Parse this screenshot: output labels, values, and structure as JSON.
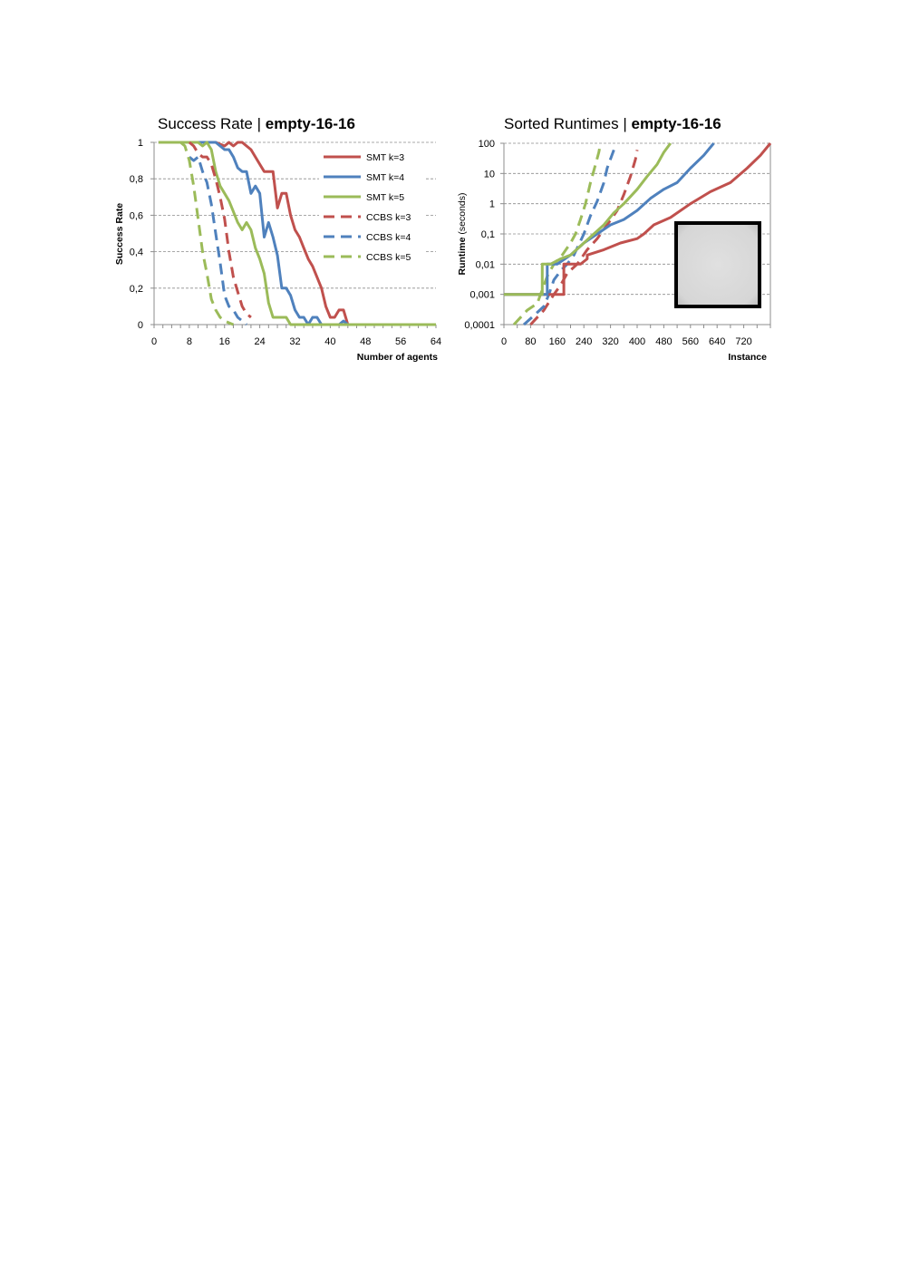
{
  "chart_data": [
    {
      "type": "line",
      "title": "Success Rate | ",
      "title_bold": "empty-16-16",
      "xlabel": "Number of agents",
      "ylabel": "Success Rate",
      "xlim": [
        0,
        64
      ],
      "ylim": [
        0,
        1
      ],
      "x_ticks": [
        "0",
        "8",
        "16",
        "24",
        "32",
        "40",
        "48",
        "56",
        "64"
      ],
      "y_ticks": [
        "0",
        "0,2",
        "0,4",
        "0,6",
        "0,8",
        "1"
      ],
      "grid": "horizontal dashed",
      "legend_position": "top-right",
      "series": [
        {
          "name": "SMT k=3",
          "color": "#c0504d",
          "style": "solid",
          "x": [
            1,
            14,
            16,
            17,
            18,
            19,
            20,
            22,
            24,
            25,
            26,
            27,
            28,
            29,
            30,
            31,
            32,
            33,
            34,
            35,
            36,
            37,
            38,
            39,
            40,
            41,
            42,
            43,
            44,
            46,
            64
          ],
          "y": [
            1,
            1,
            0.98,
            1,
            0.98,
            1,
            1,
            0.96,
            0.88,
            0.84,
            0.84,
            0.84,
            0.64,
            0.72,
            0.72,
            0.6,
            0.52,
            0.48,
            0.42,
            0.36,
            0.32,
            0.26,
            0.2,
            0.1,
            0.04,
            0.04,
            0.08,
            0.08,
            0,
            0,
            0
          ]
        },
        {
          "name": "SMT k=4",
          "color": "#4f81bd",
          "style": "solid",
          "x": [
            1,
            12,
            14,
            16,
            17,
            18,
            19,
            20,
            21,
            22,
            23,
            24,
            25,
            26,
            27,
            28,
            29,
            30,
            31,
            32,
            33,
            34,
            35,
            36,
            37,
            38,
            40,
            42,
            43,
            44,
            64
          ],
          "y": [
            1,
            1,
            1,
            0.96,
            0.96,
            0.92,
            0.86,
            0.84,
            0.84,
            0.72,
            0.76,
            0.72,
            0.48,
            0.56,
            0.48,
            0.38,
            0.2,
            0.2,
            0.16,
            0.08,
            0.04,
            0.04,
            0.0,
            0.04,
            0.04,
            0,
            0,
            0,
            0.02,
            0,
            0
          ]
        },
        {
          "name": "SMT k=5",
          "color": "#9bbb59",
          "style": "solid",
          "x": [
            1,
            10,
            11,
            12,
            13,
            14,
            15,
            16,
            17,
            18,
            19,
            20,
            21,
            22,
            23,
            24,
            25,
            26,
            27,
            28,
            29,
            30,
            31,
            32,
            64
          ],
          "y": [
            1,
            1,
            0.98,
            1,
            0.96,
            0.84,
            0.76,
            0.72,
            0.68,
            0.62,
            0.56,
            0.52,
            0.56,
            0.52,
            0.42,
            0.36,
            0.28,
            0.12,
            0.04,
            0.04,
            0.04,
            0.04,
            0.0,
            0,
            0
          ]
        },
        {
          "name": "CCBS k=3",
          "color": "#c0504d",
          "style": "dashed",
          "x": [
            8,
            9,
            10,
            11,
            12,
            13,
            14,
            15,
            16,
            17,
            18,
            19,
            20,
            21,
            22
          ],
          "y": [
            1,
            0.98,
            0.94,
            0.92,
            0.92,
            0.88,
            0.8,
            0.7,
            0.58,
            0.4,
            0.26,
            0.18,
            0.1,
            0.06,
            0.04
          ]
        },
        {
          "name": "CCBS k=4",
          "color": "#4f81bd",
          "style": "dashed",
          "x": [
            8,
            9,
            10,
            11,
            12,
            13,
            14,
            15,
            16,
            17,
            18,
            19,
            20,
            21
          ],
          "y": [
            0.92,
            0.9,
            0.92,
            0.84,
            0.78,
            0.66,
            0.5,
            0.34,
            0.16,
            0.1,
            0.08,
            0.04,
            0.02,
            0
          ]
        },
        {
          "name": "CCBS k=5",
          "color": "#9bbb59",
          "style": "dashed",
          "x": [
            6,
            7,
            8,
            9,
            10,
            11,
            12,
            13,
            14,
            15,
            16,
            17,
            18
          ],
          "y": [
            1,
            0.98,
            0.9,
            0.76,
            0.58,
            0.4,
            0.28,
            0.14,
            0.08,
            0.04,
            0.02,
            0.01,
            0
          ]
        }
      ]
    },
    {
      "type": "line",
      "title": "Sorted Runtimes | ",
      "title_bold": "empty-16-16",
      "xlabel": "Instance",
      "ylabel": "Runtime",
      "ylabel_suffix": " (seconds)",
      "xlim": [
        0,
        800
      ],
      "ylim": [
        0.0001,
        100
      ],
      "yscale": "log",
      "x_ticks": [
        "0",
        "80",
        "160",
        "240",
        "320",
        "400",
        "480",
        "560",
        "640",
        "720"
      ],
      "y_ticks": [
        "0,0001",
        "0,001",
        "0,01",
        "0,1",
        "1",
        "10",
        "100"
      ],
      "grid": "horizontal dashed",
      "inset": "grey square map with thick black border",
      "series": [
        {
          "name": "SMT k=3",
          "color": "#c0504d",
          "style": "solid",
          "x": [
            0,
            180,
            180,
            200,
            230,
            250,
            250,
            300,
            350,
            400,
            420,
            450,
            500,
            560,
            620,
            680,
            730,
            770,
            800
          ],
          "y": [
            0.001,
            0.001,
            0.01,
            0.01,
            0.01,
            0.015,
            0.02,
            0.03,
            0.05,
            0.07,
            0.1,
            0.2,
            0.35,
            1,
            2.5,
            5,
            15,
            40,
            100
          ]
        },
        {
          "name": "SMT k=4",
          "color": "#4f81bd",
          "style": "solid",
          "x": [
            0,
            130,
            130,
            160,
            200,
            240,
            280,
            320,
            360,
            400,
            440,
            480,
            520,
            560,
            600,
            630
          ],
          "y": [
            0.001,
            0.001,
            0.01,
            0.01,
            0.02,
            0.05,
            0.1,
            0.2,
            0.3,
            0.6,
            1.5,
            3,
            5,
            15,
            40,
            100
          ]
        },
        {
          "name": "SMT k=5",
          "color": "#9bbb59",
          "style": "solid",
          "x": [
            0,
            115,
            115,
            140,
            170,
            200,
            240,
            270,
            300,
            330,
            360,
            400,
            430,
            460,
            480,
            500
          ],
          "y": [
            0.001,
            0.001,
            0.01,
            0.01,
            0.015,
            0.02,
            0.05,
            0.1,
            0.2,
            0.5,
            1,
            3,
            8,
            20,
            50,
            100
          ]
        },
        {
          "name": "CCBS k=3",
          "color": "#c0504d",
          "style": "dashed",
          "x": [
            80,
            120,
            150,
            170,
            190,
            220,
            250,
            280,
            310,
            340,
            360,
            380,
            395,
            400
          ],
          "y": [
            0.0001,
            0.0003,
            0.001,
            0.002,
            0.005,
            0.01,
            0.03,
            0.07,
            0.2,
            0.6,
            2,
            8,
            30,
            60
          ]
        },
        {
          "name": "CCBS k=4",
          "color": "#4f81bd",
          "style": "dashed",
          "x": [
            60,
            90,
            120,
            135,
            150,
            170,
            190,
            210,
            240,
            260,
            280,
            300,
            310,
            320,
            330
          ],
          "y": [
            0.0001,
            0.0002,
            0.0004,
            0.001,
            0.003,
            0.006,
            0.01,
            0.02,
            0.1,
            0.4,
            1.2,
            5,
            15,
            30,
            60
          ]
        },
        {
          "name": "CCBS k=5",
          "color": "#9bbb59",
          "style": "dashed",
          "x": [
            30,
            70,
            100,
            110,
            120,
            130,
            150,
            175,
            200,
            215,
            230,
            245,
            260,
            275,
            285,
            290
          ],
          "y": [
            0.0001,
            0.0003,
            0.0005,
            0.001,
            0.002,
            0.004,
            0.01,
            0.02,
            0.05,
            0.1,
            0.3,
            1,
            5,
            20,
            50,
            100
          ]
        }
      ]
    }
  ]
}
